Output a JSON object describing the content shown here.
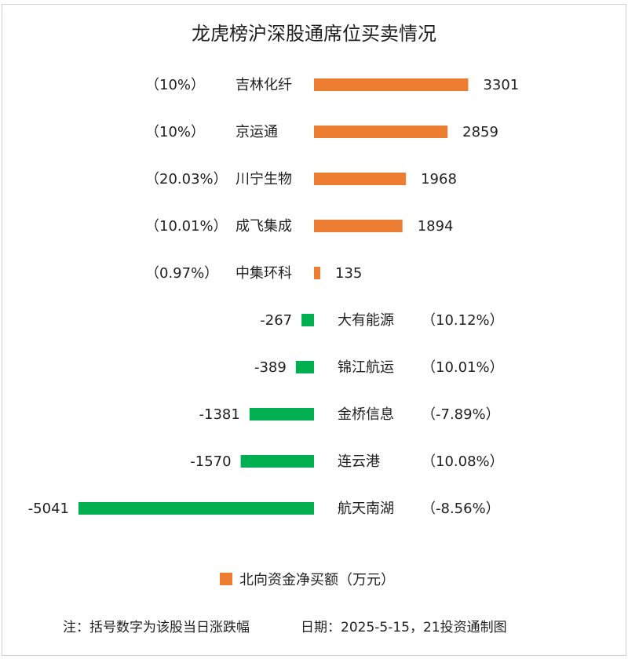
{
  "chart_data": {
    "type": "bar",
    "orientation": "horizontal",
    "title": "龙虎榜沪深股通席位买卖情况",
    "categories": [
      "吉林化纤",
      "京运通",
      "川宁生物",
      "成飞集成",
      "中集环科",
      "大有能源",
      "锦江航运",
      "金桥信息",
      "连云港",
      "航天南湖"
    ],
    "series": [
      {
        "name": "北向资金净买额（万元）",
        "values": [
          3301,
          2859,
          1968,
          1894,
          135,
          -267,
          -389,
          -1381,
          -1570,
          -5041
        ]
      }
    ],
    "pct_change_labels": [
      "（10%）",
      "（10%）",
      "（20.03%）",
      "（10.01%）",
      "（0.97%）",
      "（10.12%）",
      "（10.01%）",
      "（-7.89%）",
      "（10.08%）",
      "（-8.56%）"
    ],
    "colors": {
      "positive": "#ED7D31",
      "negative": "#00B050",
      "border": "#CFCFDA"
    },
    "grid": false,
    "axes_visible": false,
    "data_labels": true,
    "legend_position": "bottom"
  },
  "footer": {
    "note": "注：括号数字为该股当日涨跌幅",
    "date_credit": "日期：2025-5-15，21投资通制图"
  }
}
